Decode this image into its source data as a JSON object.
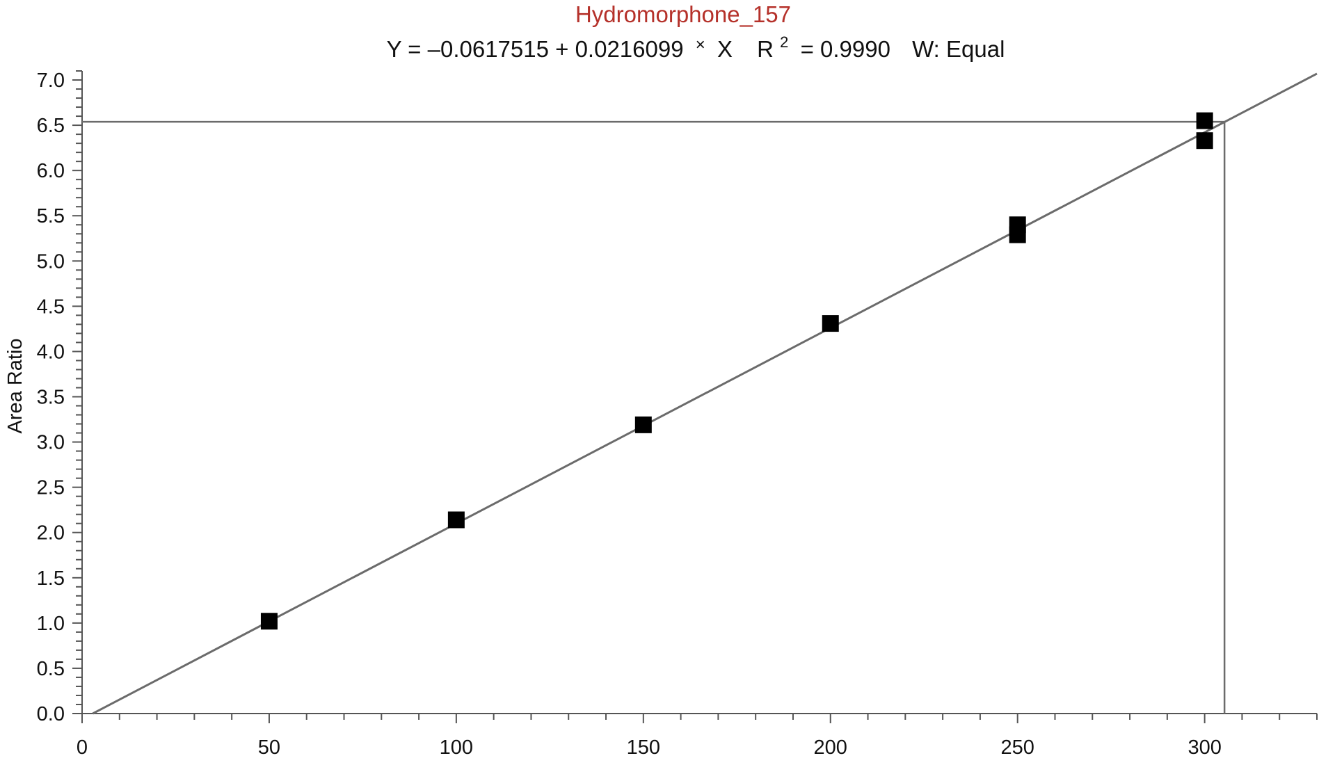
{
  "chart_data": {
    "type": "scatter",
    "title": "Hydromorphone_157",
    "equation": {
      "y_part": "Y = –0.0617515 + 0.0216099",
      "times": "×",
      "x_part": "X",
      "r_label": "R",
      "r_exp": "2",
      "r_value": "= 0.9990",
      "weighting": "W: Equal"
    },
    "ylabel": "Area Ratio",
    "xlabel": "",
    "xlim": [
      0,
      330
    ],
    "ylim": [
      0,
      7.1
    ],
    "x_ticks": [
      0,
      50,
      100,
      150,
      200,
      250,
      300
    ],
    "y_ticks": [
      "0.0",
      "0.5",
      "1.0",
      "1.5",
      "2.0",
      "2.5",
      "3.0",
      "3.5",
      "4.0",
      "4.5",
      "5.0",
      "5.5",
      "6.0",
      "6.5",
      "7.0"
    ],
    "x_minor_step": 10,
    "y_minor_step": 0.1,
    "fit": {
      "intercept": -0.0617515,
      "slope": 0.0216099
    },
    "points": [
      {
        "x": 50,
        "y": 1.02
      },
      {
        "x": 100,
        "y": 2.14
      },
      {
        "x": 150,
        "y": 3.19
      },
      {
        "x": 200,
        "y": 4.31
      },
      {
        "x": 250,
        "y": 5.29
      },
      {
        "x": 250,
        "y": 5.4
      },
      {
        "x": 300,
        "y": 6.33
      },
      {
        "x": 300,
        "y": 6.55
      }
    ],
    "crosshair": {
      "x": 305.3,
      "y": 6.538
    },
    "colors": {
      "title": "#b5312a",
      "line": "#6b6b6b",
      "marker": "#000000",
      "axis": "#555555"
    }
  }
}
